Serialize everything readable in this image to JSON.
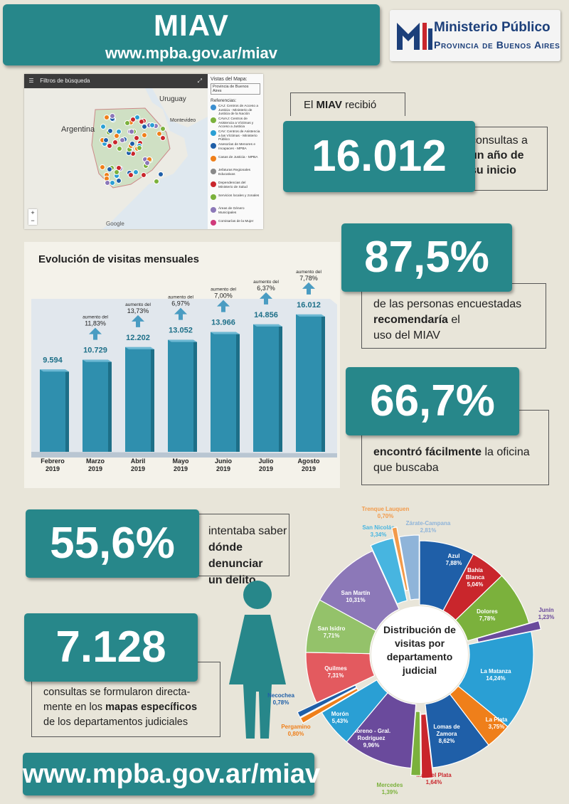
{
  "header": {
    "title": "MIAV",
    "url": "www.mpba.gov.ar/miav"
  },
  "logo": {
    "line1": "Ministerio Público",
    "line2": "Provincia de Buenos Aires"
  },
  "map": {
    "bar_title": "Filtros de búsqueda",
    "labels": [
      "Uruguay",
      "Argentina",
      "Montevideo"
    ],
    "side_title": "Vistas del Mapa:",
    "select_value": "Provincia de Buenos Aires",
    "refs_title": "Referencias:",
    "refs": [
      "CAJ: Centros de Acceso a Justicia - Ministerio de Justicia de la Nación",
      "CAVAJ: Centros de Asistencia a Víctimas y Acceso a Justicia",
      "CAV: Centros de Asistencia a las Víctimas - Ministerio Público",
      "Asesorías de Menores e Incapaces - MPBA",
      "Casas de Justicia - MPBA",
      "Jefaturas Regionales Educativas",
      "Dependencias del Ministerio de Salud",
      "Servicios locales y zonales",
      "Áreas de Género Municipales",
      "Comisarías de la Mujer"
    ],
    "google": "Google"
  },
  "stat1": {
    "pre": "El ",
    "bold": "MIAV",
    "post": " recibió",
    "number": "16.012",
    "desc_a": "consultas a",
    "desc_b": "un año de",
    "desc_c": "su inicio"
  },
  "stat2": {
    "number": "87,5%",
    "line1": "de las personas encuestadas",
    "bold": "recomendaría",
    "line2_rest": " el",
    "line3": "uso del MIAV"
  },
  "stat3": {
    "number": "66,7%",
    "bold": "encontró fácilmente",
    "rest": " la oficina",
    "line2": "que buscaba"
  },
  "stat4": {
    "number": "55,6%",
    "line1": "intentaba saber",
    "bold1": "dónde denunciar",
    "bold2": "un delito"
  },
  "stat5": {
    "number": "7.128",
    "line1": "consultas se formularon directa-",
    "line2_pre": "mente en los ",
    "line2_bold": "mapas específicos",
    "line3": "de los departamentos judiciales"
  },
  "footer": {
    "url": "www.mpba.gov.ar/miav"
  },
  "chart_data": [
    {
      "type": "bar",
      "title": "Evolución de visitas mensuales",
      "categories": [
        "Febrero 2019",
        "Marzo 2019",
        "Abril 2019",
        "Mayo 2019",
        "Junio 2019",
        "Julio 2019",
        "Agosto 2019"
      ],
      "values": [
        9594,
        10729,
        12202,
        13052,
        13966,
        14856,
        16012
      ],
      "value_labels": [
        "9.594",
        "10.729",
        "12.202",
        "13.052",
        "13.966",
        "14.856",
        "16.012"
      ],
      "increase_prefix": "aumento del",
      "increases": [
        "",
        "11,83%",
        "13,73%",
        "6,97%",
        "7,00%",
        "6,37%",
        "7,78%"
      ],
      "color": "#2f8fae"
    },
    {
      "type": "pie",
      "title": "Distribución de visitas por departamento judicial",
      "slices": [
        {
          "label": "Azul",
          "value": 7.88,
          "text": "7,88%",
          "color": "#1f5fa8"
        },
        {
          "label": "Bahía Blanca",
          "value": 5.04,
          "text": "5,04%",
          "color": "#c9262c"
        },
        {
          "label": "Dolores",
          "value": 7.78,
          "text": "7,78%",
          "color": "#7bb13c"
        },
        {
          "label": "Junín",
          "value": 1.23,
          "text": "1,23%",
          "color": "#6a4a9c"
        },
        {
          "label": "La Matanza",
          "value": 14.24,
          "text": "14,24%",
          "color": "#2a9fd4"
        },
        {
          "label": "La Plata",
          "value": 3.75,
          "text": "3,75%",
          "color": "#ef7f1a"
        },
        {
          "label": "Lomas de Zamora",
          "value": 8.62,
          "text": "8,62%",
          "color": "#1f5fa8"
        },
        {
          "label": "Mar del Plata",
          "value": 1.64,
          "text": "1,64%",
          "color": "#c9262c"
        },
        {
          "label": "Mercedes",
          "value": 1.39,
          "text": "1,39%",
          "color": "#7bb13c"
        },
        {
          "label": "Moreno - Gral. Rodríguez",
          "value": 9.96,
          "text": "9,96%",
          "color": "#6a4a9c"
        },
        {
          "label": "Morón",
          "value": 5.43,
          "text": "5,43%",
          "color": "#2a9fd4"
        },
        {
          "label": "Pergamino",
          "value": 0.8,
          "text": "0,80%",
          "color": "#ef7f1a"
        },
        {
          "label": "Necochea",
          "value": 0.78,
          "text": "0,78%",
          "color": "#1f5fa8"
        },
        {
          "label": "Quilmes",
          "value": 7.31,
          "text": "7,31%",
          "color": "#e35a5f"
        },
        {
          "label": "San Isidro",
          "value": 7.71,
          "text": "7,71%",
          "color": "#94c26a"
        },
        {
          "label": "San Martín",
          "value": 10.31,
          "text": "10,31%",
          "color": "#8c78b8"
        },
        {
          "label": "San Nicolás",
          "value": 3.34,
          "text": "3,34%",
          "color": "#47b5e0"
        },
        {
          "label": "Trenque Lauquen",
          "value": 0.7,
          "text": "0,70%",
          "color": "#f29a4a"
        },
        {
          "label": "Zárate-Campana",
          "value": 2.81,
          "text": "2,81%",
          "color": "#8fb4d9"
        }
      ]
    }
  ]
}
